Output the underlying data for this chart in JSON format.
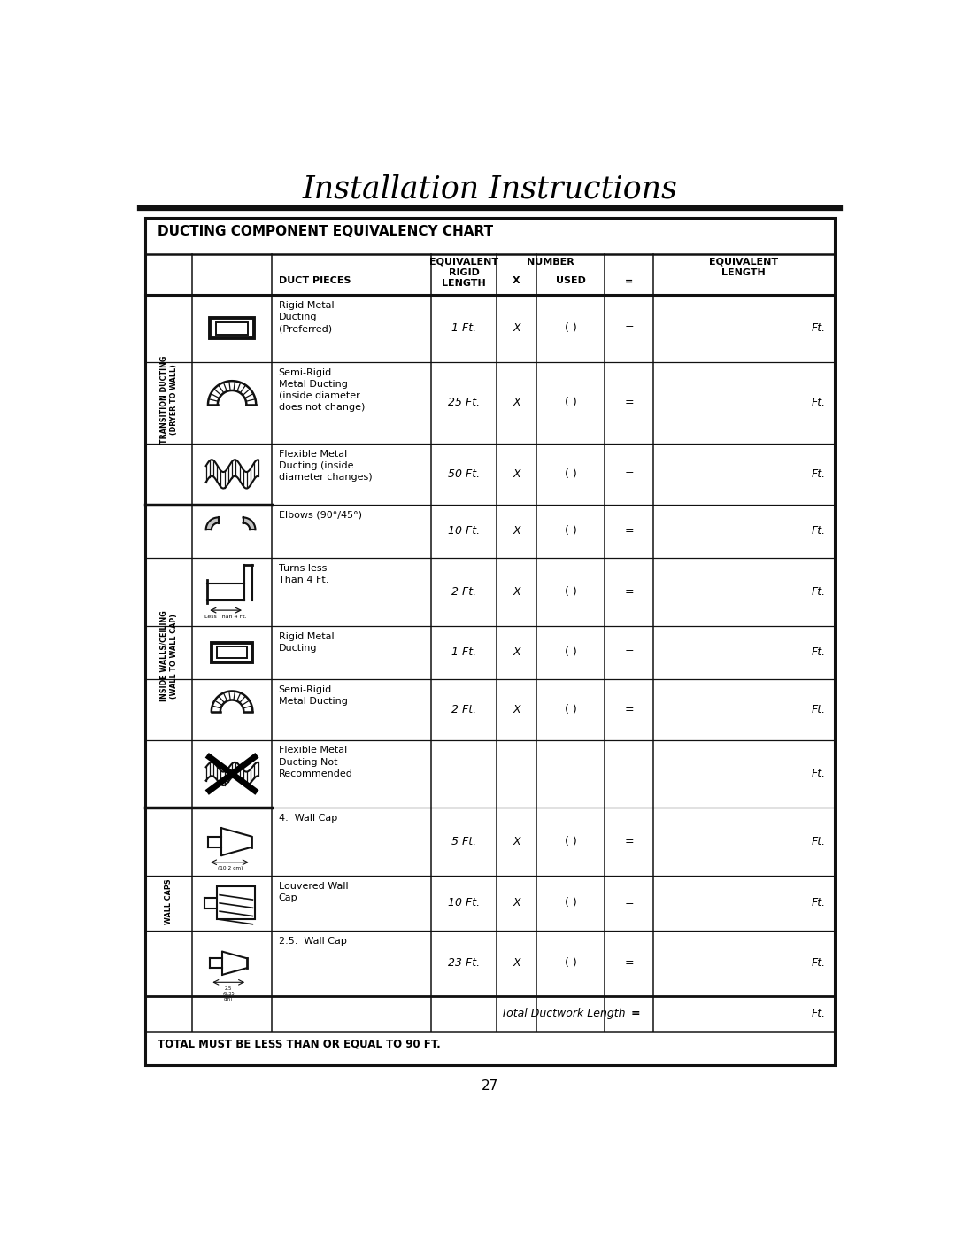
{
  "title": "Installation Instructions",
  "chart_title": "DUCTING COMPONENT EQUIVALENCY CHART",
  "page_number": "27",
  "rows": [
    {
      "desc": "Rigid Metal\nDucting\n(Preferred)",
      "equiv": "1 Ft.",
      "x_col": "X",
      "used": "( )",
      "eq": "=",
      "length": "Ft.",
      "icon": "rigid"
    },
    {
      "desc": "Semi-Rigid\nMetal Ducting\n(inside diameter\ndoes not change)",
      "equiv": "25 Ft.",
      "x_col": "X",
      "used": "( )",
      "eq": "=",
      "length": "Ft.",
      "icon": "semi_rigid"
    },
    {
      "desc": "Flexible Metal\nDucting (inside\ndiameter changes)",
      "equiv": "50 Ft.",
      "x_col": "X",
      "used": "( )",
      "eq": "=",
      "length": "Ft.",
      "icon": "flexible"
    },
    {
      "desc": "Elbows (90°/45°)",
      "equiv": "10 Ft.",
      "x_col": "X",
      "used": "( )",
      "eq": "=",
      "length": "Ft.",
      "icon": "elbows"
    },
    {
      "desc": "Turns less\nThan 4 Ft.",
      "equiv": "2 Ft.",
      "x_col": "X",
      "used": "( )",
      "eq": "=",
      "length": "Ft.",
      "icon": "turns"
    },
    {
      "desc": "Rigid Metal\nDucting",
      "equiv": "1 Ft.",
      "x_col": "X",
      "used": "( )",
      "eq": "=",
      "length": "Ft.",
      "icon": "rigid"
    },
    {
      "desc": "Semi-Rigid\nMetal Ducting",
      "equiv": "2 Ft.",
      "x_col": "X",
      "used": "( )",
      "eq": "=",
      "length": "Ft.",
      "icon": "semi_rigid"
    },
    {
      "desc": "Flexible Metal\nDucting Not\nRecommended",
      "equiv": "",
      "x_col": "",
      "used": "",
      "eq": "",
      "length": "Ft.",
      "icon": "flexible_no"
    },
    {
      "desc": "4.  Wall Cap",
      "equiv": "5 Ft.",
      "x_col": "X",
      "used": "( )",
      "eq": "=",
      "length": "Ft.",
      "icon": "wall_cap_4"
    },
    {
      "desc": "Louvered Wall\nCap",
      "equiv": "10 Ft.",
      "x_col": "X",
      "used": "( )",
      "eq": "=",
      "length": "Ft.",
      "icon": "louvered"
    },
    {
      "desc": "2.5.  Wall Cap",
      "equiv": "23 Ft.",
      "x_col": "X",
      "used": "( )",
      "eq": "=",
      "length": "Ft.",
      "icon": "wall_cap_25"
    }
  ],
  "sections": [
    {
      "label": "TRANSITION DUCTING\n(DRYER TO WALL)",
      "rows": [
        0,
        1,
        2
      ]
    },
    {
      "label": "INSIDE WALLS/CEILING\n(WALL TO WALL CAP)",
      "rows": [
        3,
        4,
        5,
        6,
        7
      ]
    },
    {
      "label": "WALL CAPS",
      "rows": [
        8,
        9,
        10
      ]
    }
  ],
  "footer_label": "Total Ductwork Length",
  "footer_eq": "=",
  "footer_ft": "Ft.",
  "footer_note": "TOTAL MUST BE LESS THAN OR EQUAL TO 90 FT.",
  "row_heights": [
    1.1,
    1.35,
    1.0,
    0.88,
    1.12,
    0.88,
    1.0,
    1.12,
    1.12,
    0.9,
    1.08
  ]
}
